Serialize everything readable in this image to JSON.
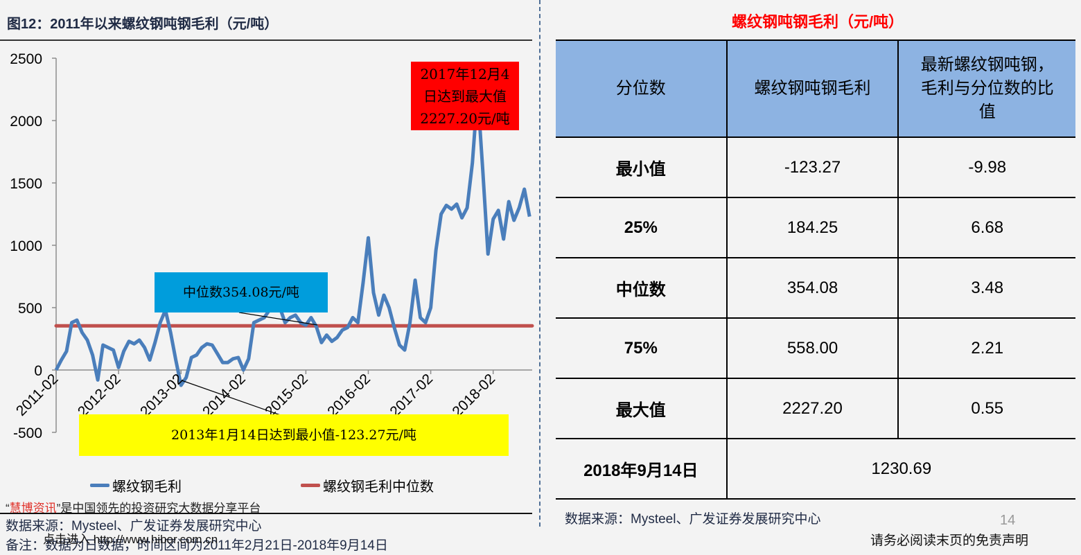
{
  "left_panel": {
    "figure_title": "图12：2011年以来螺纹钢吨钢毛利（元/吨）",
    "callouts": {
      "max": [
        "2017年12月4",
        "日达到最大值",
        "2227.20元/吨"
      ],
      "median": "中位数354.08元/吨",
      "min": "2013年1月14日达到最小值-123.27元/吨"
    },
    "legend": [
      {
        "label": "螺纹钢毛利",
        "color": "#4a7ebb"
      },
      {
        "label": "螺纹钢毛利中位数",
        "color": "#c0504d"
      }
    ],
    "watermark": {
      "open_quote": "“",
      "brand": "慧博资讯",
      "rest": "”是中国领先的投资研究大数据分享平台"
    },
    "link_overlay": "点击进入 http://www.hibor.com.cn",
    "source": "数据来源：Mysteel、广发证券发展研究中心",
    "note": "备注：数据为日数据，时间区间为2011年2月21日-2018年9月14日"
  },
  "right_panel": {
    "title": "螺纹钢吨钢毛利（元/吨）",
    "table": {
      "headers": [
        "分位数",
        "螺纹钢吨钢毛利",
        "最新螺纹钢吨钢，毛利与分位数的比值"
      ],
      "header_lines_3": [
        "最新螺纹钢吨钢，",
        "毛利与分位数的比",
        "值"
      ],
      "rows": [
        {
          "label": "最小值",
          "value": "-123.27",
          "ratio": "-9.98"
        },
        {
          "label": "25%",
          "value": "184.25",
          "ratio": "6.68"
        },
        {
          "label": "中位数",
          "value": "354.08",
          "ratio": "3.48"
        },
        {
          "label": "75%",
          "value": "558.00",
          "ratio": "2.21"
        },
        {
          "label": "最大值",
          "value": "2227.20",
          "ratio": "0.55"
        }
      ],
      "latest": {
        "label": "2018年9月14日",
        "value": "1230.69"
      }
    },
    "source": "数据来源：Mysteel、广发证券发展研究中心",
    "page_number": "14",
    "disclaimer": "请务必阅读末页的免责声明"
  },
  "chart_data": {
    "type": "line",
    "title": "2011年以来螺纹钢吨钢毛利（元/吨）",
    "xlabel": "",
    "ylabel": "元/吨",
    "ylim": [
      -500,
      2500
    ],
    "yticks": [
      -500,
      0,
      500,
      1000,
      1500,
      2000,
      2500
    ],
    "xticks": [
      "2011-02",
      "2012-02",
      "2013-02",
      "2014-02",
      "2015-02",
      "2016-02",
      "2017-02",
      "2018-02"
    ],
    "grid": false,
    "legend_position": "bottom",
    "series": [
      {
        "name": "螺纹钢毛利",
        "color": "#4a7ebb",
        "x": [
          "2011-02",
          "2011-03",
          "2011-04",
          "2011-05",
          "2011-06",
          "2011-07",
          "2011-08",
          "2011-09",
          "2011-10",
          "2011-11",
          "2011-12",
          "2012-01",
          "2012-02",
          "2012-03",
          "2012-04",
          "2012-05",
          "2012-06",
          "2012-07",
          "2012-08",
          "2012-09",
          "2012-10",
          "2012-11",
          "2012-12",
          "2013-01",
          "2013-02",
          "2013-03",
          "2013-04",
          "2013-05",
          "2013-06",
          "2013-07",
          "2013-08",
          "2013-09",
          "2013-10",
          "2013-11",
          "2013-12",
          "2014-01",
          "2014-02",
          "2014-03",
          "2014-04",
          "2014-05",
          "2014-06",
          "2014-07",
          "2014-08",
          "2014-09",
          "2014-10",
          "2014-11",
          "2014-12",
          "2015-01",
          "2015-02",
          "2015-03",
          "2015-04",
          "2015-05",
          "2015-06",
          "2015-07",
          "2015-08",
          "2015-09",
          "2015-10",
          "2015-11",
          "2015-12",
          "2016-01",
          "2016-02",
          "2016-03",
          "2016-04",
          "2016-05",
          "2016-06",
          "2016-07",
          "2016-08",
          "2016-09",
          "2016-10",
          "2016-11",
          "2016-12",
          "2017-01",
          "2017-02",
          "2017-03",
          "2017-04",
          "2017-05",
          "2017-06",
          "2017-07",
          "2017-08",
          "2017-09",
          "2017-10",
          "2017-11",
          "2017-12",
          "2018-01",
          "2018-02",
          "2018-03",
          "2018-04",
          "2018-05",
          "2018-06",
          "2018-07",
          "2018-08",
          "2018-09"
        ],
        "values": [
          0,
          80,
          150,
          380,
          400,
          300,
          240,
          120,
          -80,
          200,
          180,
          160,
          20,
          150,
          230,
          210,
          240,
          180,
          80,
          220,
          380,
          480,
          300,
          80,
          -123,
          -60,
          100,
          120,
          180,
          210,
          200,
          130,
          60,
          60,
          90,
          100,
          0,
          90,
          380,
          400,
          420,
          480,
          560,
          500,
          380,
          420,
          440,
          380,
          360,
          420,
          350,
          220,
          280,
          230,
          260,
          320,
          340,
          420,
          380,
          700,
          1060,
          620,
          440,
          600,
          500,
          340,
          200,
          160,
          380,
          720,
          420,
          380,
          500,
          960,
          1250,
          1320,
          1290,
          1330,
          1220,
          1300,
          1660,
          2227,
          1600,
          930,
          1210,
          1280,
          1050,
          1350,
          1200,
          1300,
          1450,
          1230
        ]
      },
      {
        "name": "螺纹钢毛利中位数",
        "color": "#c0504d",
        "constant": 354.08
      }
    ],
    "annotations": [
      {
        "text": "2017年12月4日达到最大值2227.20元/吨",
        "x": "2017-12-04",
        "y": 2227.2
      },
      {
        "text": "中位数354.08元/吨",
        "y": 354.08
      },
      {
        "text": "2013年1月14日达到最小值-123.27元/吨",
        "x": "2013-01-14",
        "y": -123.27
      }
    ]
  }
}
